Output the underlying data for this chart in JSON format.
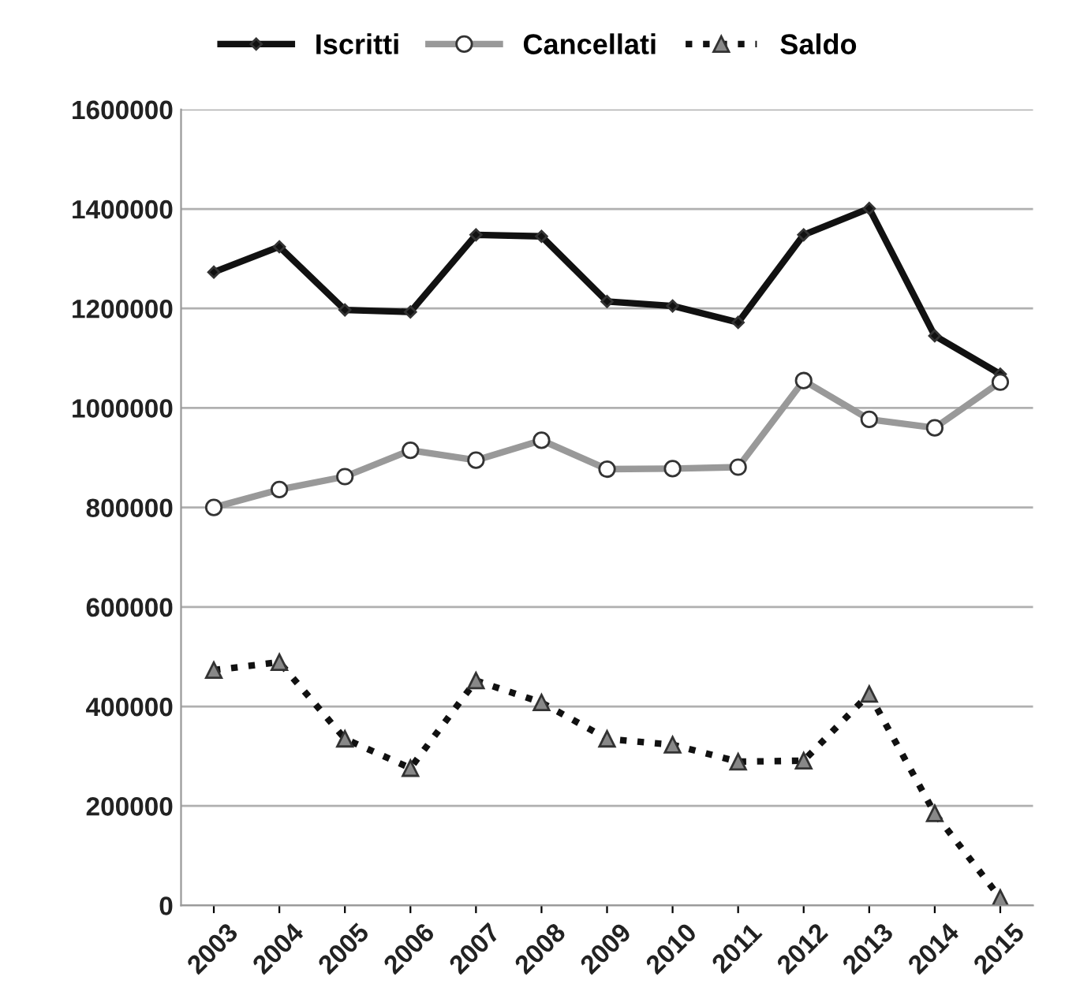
{
  "chart_data": {
    "type": "line",
    "categories": [
      "2003",
      "2004",
      "2005",
      "2006",
      "2007",
      "2008",
      "2009",
      "2010",
      "2011",
      "2012",
      "2013",
      "2014",
      "2015"
    ],
    "series": [
      {
        "name": "Iscritti",
        "color": "#111111",
        "marker": "diamond",
        "line_style": "solid",
        "values": [
          1273000,
          1324000,
          1197000,
          1193000,
          1348000,
          1345000,
          1214000,
          1205000,
          1172000,
          1348000,
          1401000,
          1145000,
          1068000
        ]
      },
      {
        "name": "Cancellati",
        "color": "#999999",
        "marker": "circle",
        "line_style": "solid",
        "values": [
          800000,
          836000,
          862000,
          915000,
          895000,
          935000,
          877000,
          878000,
          881000,
          1055000,
          977000,
          960000,
          1052000
        ]
      },
      {
        "name": "Saldo",
        "color": "#111111",
        "marker": "triangle",
        "line_style": "dotted",
        "values": [
          473000,
          489000,
          335000,
          276000,
          452000,
          408000,
          335000,
          323000,
          289000,
          291000,
          425000,
          185000,
          15000
        ]
      }
    ],
    "ylim": [
      0,
      1600000
    ],
    "yticks": [
      0,
      200000,
      400000,
      600000,
      800000,
      1000000,
      1200000,
      1400000,
      1600000
    ],
    "grid": "y",
    "legend": "top"
  }
}
